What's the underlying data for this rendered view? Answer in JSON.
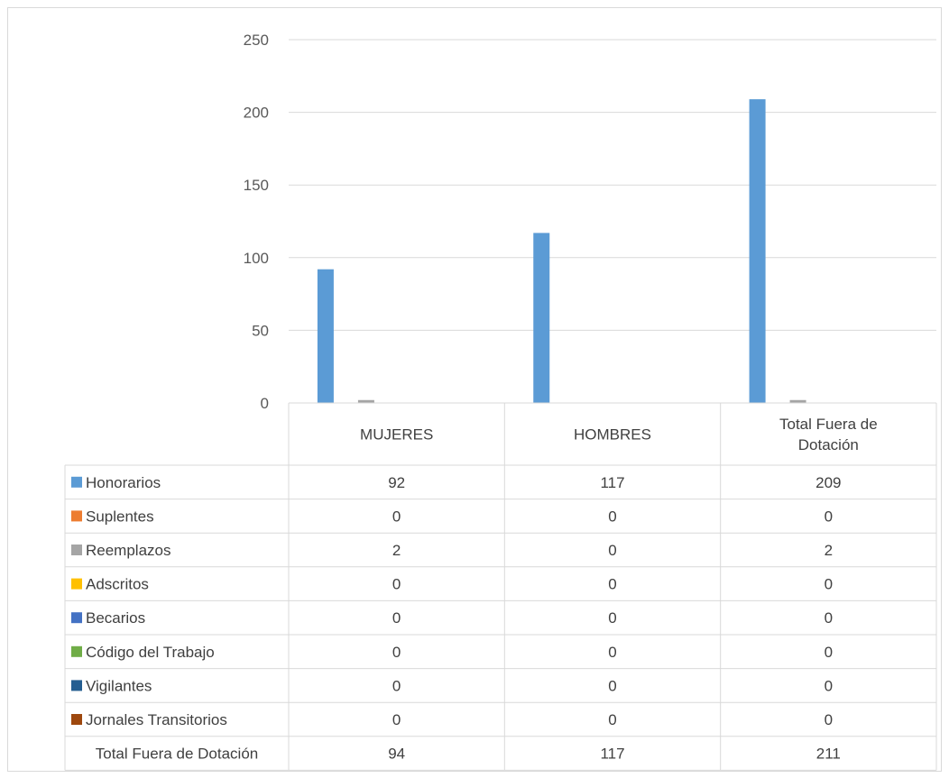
{
  "chart_data": {
    "type": "bar",
    "categories": [
      "MUJERES",
      "HOMBRES",
      "Total Fuera de Dotación"
    ],
    "series": [
      {
        "name": "Honorarios",
        "values": [
          92,
          117,
          209
        ],
        "color": "#5b9bd5"
      },
      {
        "name": "Suplentes",
        "values": [
          0,
          0,
          0
        ],
        "color": "#ed7d31"
      },
      {
        "name": "Reemplazos",
        "values": [
          2,
          0,
          2
        ],
        "color": "#a5a5a5"
      },
      {
        "name": "Adscritos",
        "values": [
          0,
          0,
          0
        ],
        "color": "#ffc000"
      },
      {
        "name": "Becarios",
        "values": [
          0,
          0,
          0
        ],
        "color": "#4472c4"
      },
      {
        "name": "Código del Trabajo",
        "values": [
          0,
          0,
          0
        ],
        "color": "#70ad47"
      },
      {
        "name": "Vigilantes",
        "values": [
          0,
          0,
          0
        ],
        "color": "#255e91"
      },
      {
        "name": "Jornales Transitorios",
        "values": [
          0,
          0,
          0
        ],
        "color": "#9e480e"
      }
    ],
    "totals": {
      "name": "Total Fuera de Dotación",
      "values": [
        94,
        117,
        211
      ]
    },
    "ylim": [
      0,
      250
    ],
    "yticks": [
      0,
      50,
      100,
      150,
      200,
      250
    ],
    "grid": true,
    "legend": "data-table"
  }
}
